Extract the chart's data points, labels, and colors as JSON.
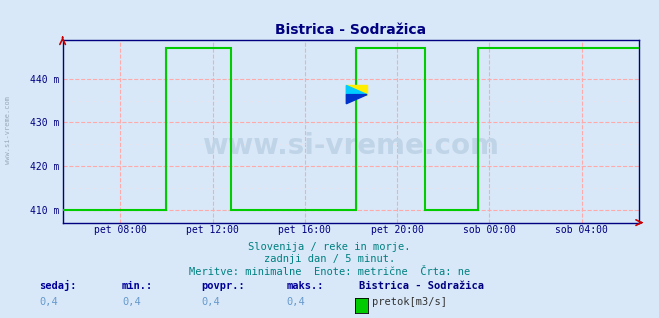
{
  "title": "Bistrica - Sodražica",
  "bg_color": "#d8e8f8",
  "plot_bg_color": "#d8e8f8",
  "line_color": "#00cc00",
  "axis_color": "#000080",
  "grid_color_major": "#ffaaaa",
  "grid_color_minor": "#ffdddd",
  "ylim": [
    407,
    449
  ],
  "ytick_labels": [
    "410 m",
    "420 m",
    "430 m",
    "440 m"
  ],
  "ytick_values": [
    410,
    420,
    430,
    440
  ],
  "xtick_labels": [
    "pet 08:00",
    "pet 12:00",
    "pet 16:00",
    "pet 20:00",
    "sob 00:00",
    "sob 04:00"
  ],
  "xtick_values": [
    8,
    12,
    16,
    20,
    24,
    28
  ],
  "xlim": [
    5.5,
    30.5
  ],
  "watermark": "www.si-vreme.com",
  "subtitle1": "Slovenija / reke in morje.",
  "subtitle2": "zadnji dan / 5 minut.",
  "subtitle3": "Meritve: minimalne  Enote: metrične  Črta: ne",
  "footer_label1": "sedaj:",
  "footer_label2": "min.:",
  "footer_label3": "povpr.:",
  "footer_label4": "maks.:",
  "footer_val1": "0,4",
  "footer_val2": "0,4",
  "footer_val3": "0,4",
  "footer_val4": "0,4",
  "footer_station": "Bistrica - Sodražica",
  "footer_legend": "pretok[m3/s]",
  "legend_color": "#00cc00",
  "x_data": [
    5.5,
    10.0,
    10.0,
    12.8,
    12.8,
    18.2,
    18.2,
    21.2,
    21.2,
    23.5,
    23.5,
    30.5
  ],
  "y_data": [
    410,
    410,
    447,
    447,
    410,
    410,
    447,
    447,
    410,
    410,
    447,
    447
  ],
  "title_color": "#000080",
  "tick_color": "#000080",
  "watermark_color": "#c0d4e8",
  "subtitle_color": "#008080",
  "footer_label_color": "#000099",
  "footer_val_color": "#6699cc",
  "sidebar_color": "#99aabb"
}
